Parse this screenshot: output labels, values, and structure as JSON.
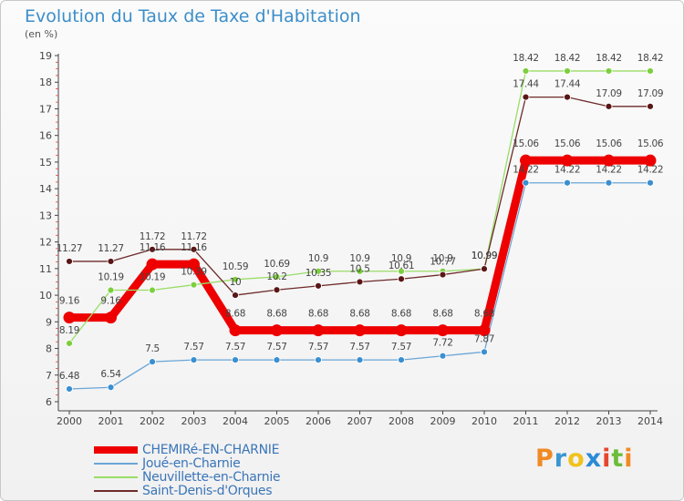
{
  "chart_data": {
    "type": "line",
    "title": "Evolution du Taux de Taxe d'Habitation",
    "unit_label": "(en %)",
    "x": [
      "2000",
      "2001",
      "2002",
      "2003",
      "2004",
      "2005",
      "2006",
      "2007",
      "2008",
      "2009",
      "2010",
      "2011",
      "2012",
      "2013",
      "2014"
    ],
    "ylim": [
      6,
      19
    ],
    "yticks": [
      6,
      7,
      8,
      9,
      10,
      11,
      12,
      13,
      14,
      15,
      16,
      17,
      18,
      19
    ],
    "grid": false,
    "legend_position": "bottom-left",
    "series": [
      {
        "name": "CHEMIRé-EN-CHARNIE",
        "color": "#ee0000",
        "marker_color": "#ee0000",
        "values": [
          9.16,
          9.16,
          11.16,
          11.16,
          8.68,
          8.68,
          8.68,
          8.68,
          8.68,
          8.68,
          8.68,
          15.06,
          15.06,
          15.06,
          15.06
        ],
        "labels": [
          "9.16",
          "9.16",
          "11.16",
          "11.16",
          "8.68",
          "8.68",
          "8.68",
          "8.68",
          "8.68",
          "8.68",
          "8.68",
          "15.06",
          "15.06",
          "15.06",
          "15.06"
        ]
      },
      {
        "name": "Joué-en-Charnie",
        "color": "#6aa5d6",
        "marker_color": "#3a8fd0",
        "values": [
          6.48,
          6.54,
          7.5,
          7.57,
          7.57,
          7.57,
          7.57,
          7.57,
          7.57,
          7.72,
          7.87,
          14.22,
          14.22,
          14.22,
          14.22
        ],
        "labels": [
          "6.48",
          "6.54",
          "7.5",
          "7.57",
          "7.57",
          "7.57",
          "7.57",
          "7.57",
          "7.57",
          "7.72",
          "7.87",
          "14.22",
          "14.22",
          "14.22",
          "14.22"
        ]
      },
      {
        "name": "Neuvillette-en-Charnie",
        "color": "#99dd66",
        "marker_color": "#7ccf3e",
        "values": [
          8.19,
          10.19,
          10.19,
          10.39,
          10.59,
          10.69,
          10.9,
          10.9,
          10.9,
          10.9,
          10.99,
          18.42,
          18.42,
          18.42,
          18.42
        ],
        "labels": [
          "8.19",
          "10.19",
          "10.19",
          "10.39",
          "10.59",
          "10.69",
          "10.9",
          "10.9",
          "10.9",
          "10.9",
          "10.99",
          "18.42",
          "18.42",
          "18.42",
          "18.42"
        ]
      },
      {
        "name": "Saint-Denis-d'Orques",
        "color": "#6e2a2a",
        "marker_color": "#5a1616",
        "values": [
          11.27,
          11.27,
          11.72,
          11.72,
          10,
          10.2,
          10.35,
          10.5,
          10.61,
          10.77,
          10.99,
          17.44,
          17.44,
          17.09,
          17.09
        ],
        "labels": [
          "11.27",
          "11.27",
          "11.72",
          "11.72",
          "10",
          "10.2",
          "10.35",
          "10.5",
          "10.61",
          "10.77",
          "10.99",
          "17.44",
          "17.44",
          "17.09",
          "17.09"
        ]
      }
    ]
  },
  "brand": {
    "letters": [
      "P",
      "r",
      "o",
      "x",
      "i",
      "t",
      "i"
    ]
  }
}
